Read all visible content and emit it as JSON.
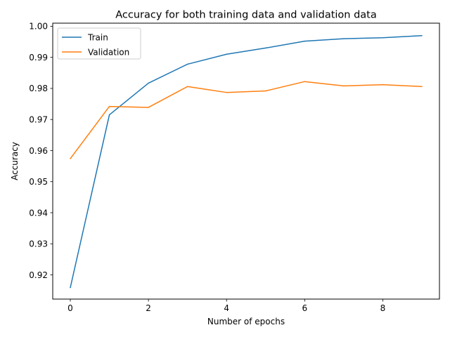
{
  "chart_data": {
    "type": "line",
    "title": "Accuracy for both training data and validation data",
    "xlabel": "Number of epochs",
    "ylabel": "Accuracy",
    "xlim": [
      -0.45,
      9.45
    ],
    "ylim": [
      0.9122,
      1.001
    ],
    "xticks": [
      0,
      2,
      4,
      6,
      8
    ],
    "yticks": [
      0.92,
      0.93,
      0.94,
      0.95,
      0.96,
      0.97,
      0.98,
      0.99,
      1.0
    ],
    "ytick_labels": [
      "0.92",
      "0.93",
      "0.94",
      "0.95",
      "0.96",
      "0.97",
      "0.98",
      "0.99",
      "1.00"
    ],
    "grid": false,
    "legend_position": "top-left",
    "x": [
      0,
      1,
      2,
      3,
      4,
      5,
      6,
      7,
      8,
      9
    ],
    "series": [
      {
        "name": "Train",
        "color": "#1f77b4",
        "values": [
          0.9159,
          0.9715,
          0.9817,
          0.9878,
          0.991,
          0.993,
          0.9952,
          0.996,
          0.9963,
          0.997
        ]
      },
      {
        "name": "Validation",
        "color": "#ff7f0e",
        "values": [
          0.9574,
          0.9742,
          0.9739,
          0.9806,
          0.9787,
          0.9792,
          0.9822,
          0.9808,
          0.9812,
          0.9806
        ]
      }
    ]
  }
}
